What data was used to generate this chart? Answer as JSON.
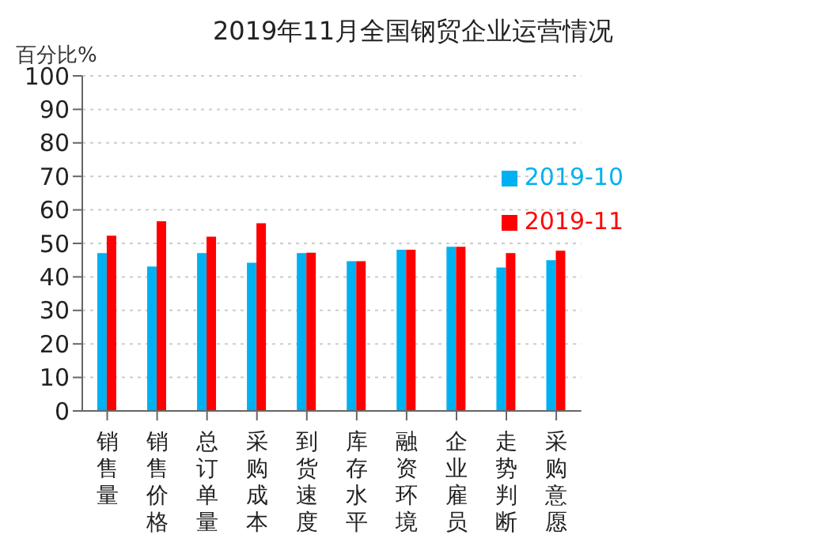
{
  "chart_data": {
    "type": "bar",
    "title": "2019年11月全国钢贸企业运营情况",
    "ylabel": "百分比%",
    "categories": [
      "销售量",
      "销售价格",
      "总订单量",
      "采购成本",
      "到货速度",
      "库存水平",
      "融资环境",
      "企业雇员",
      "走势判断",
      "采购意愿"
    ],
    "series": [
      {
        "name": "2019-10",
        "color": "#00b0f0",
        "values": [
          47.1,
          43.1,
          47.1,
          44.2,
          47.1,
          44.7,
          48.1,
          49.0,
          42.8,
          45.0
        ]
      },
      {
        "name": "2019-11",
        "color": "#ff0000",
        "values": [
          52.3,
          56.6,
          52.0,
          56.0,
          47.2,
          44.7,
          48.1,
          49.0,
          47.1,
          47.8
        ]
      }
    ],
    "ylim": [
      0,
      100
    ],
    "yticks": [
      0,
      10,
      20,
      30,
      40,
      50,
      60,
      70,
      80,
      90,
      100
    ],
    "grid": "y",
    "legend": "top right"
  }
}
